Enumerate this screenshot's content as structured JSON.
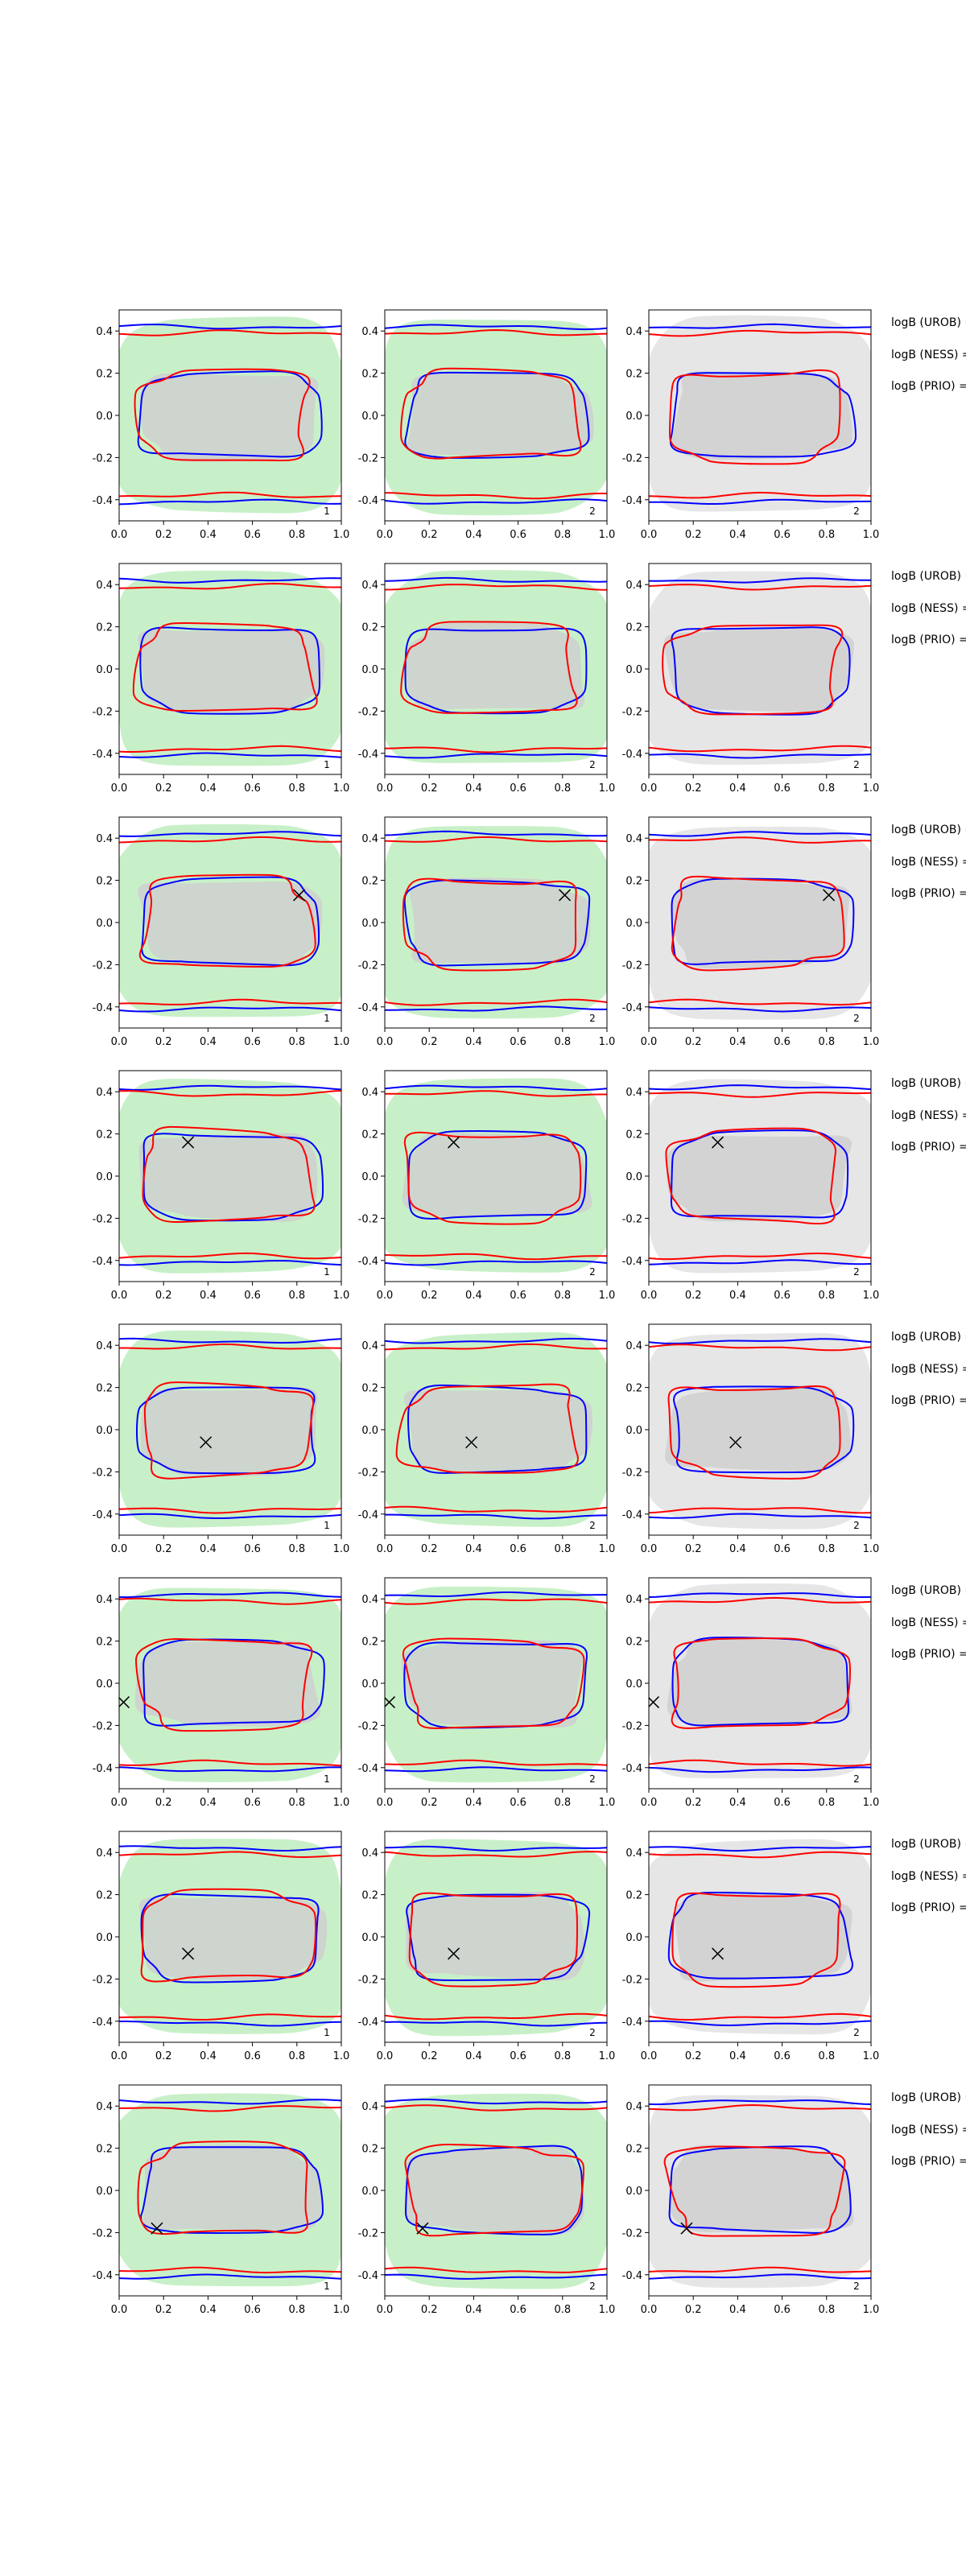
{
  "figure": {
    "colors": {
      "green_fill": "#c8f0c8",
      "gray_fill": "#e6e6e6",
      "inner_gray": "#cfcfcf",
      "blue": "#0000ff",
      "red": "#ff0000",
      "marker": "#000000"
    }
  },
  "chart_data": {
    "type": "contour-grid",
    "rows": 8,
    "cols": 3,
    "xlim": [
      0.0,
      1.0
    ],
    "ylim": [
      -0.5,
      0.5
    ],
    "xticks": [
      "0.0",
      "0.2",
      "0.4",
      "0.6",
      "0.8",
      "1.0"
    ],
    "yticks": [
      "0.4",
      "0.2",
      "0.0",
      "-0.2",
      "-0.4"
    ],
    "xtick_values": [
      0.0,
      0.2,
      0.4,
      0.6,
      0.8,
      1.0
    ],
    "ytick_values": [
      0.4,
      0.2,
      0.0,
      -0.2,
      -0.4
    ],
    "column_background": [
      "green",
      "green",
      "gray"
    ],
    "panel_labels": [
      "1",
      "2",
      "2"
    ],
    "side_labels": [
      "logB (UROB) =",
      "logB (NESS) =",
      "logB (PRIO) ="
    ],
    "rows_markers": [
      null,
      null,
      {
        "x": 0.81,
        "y": 0.13
      },
      {
        "x": 0.31,
        "y": 0.16
      },
      {
        "x": 0.39,
        "y": -0.06
      },
      {
        "x": 0.02,
        "y": -0.09
      },
      {
        "x": 0.31,
        "y": -0.08
      },
      {
        "x": 0.17,
        "y": -0.18
      }
    ]
  }
}
